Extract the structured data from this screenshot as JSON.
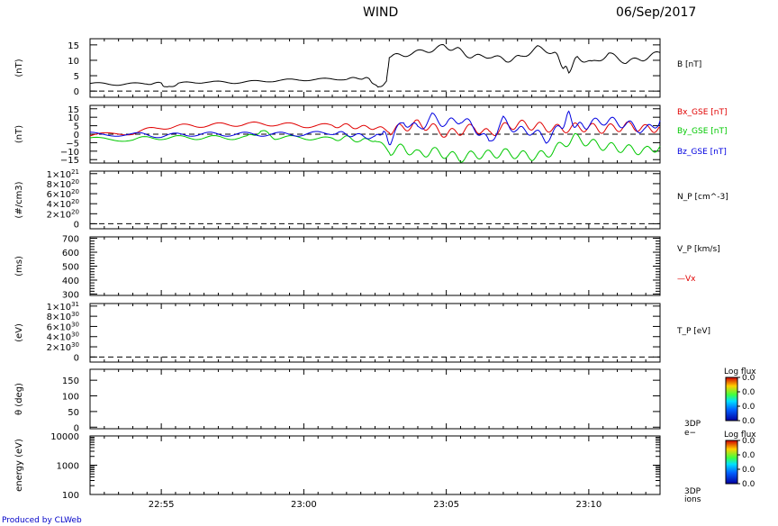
{
  "header": {
    "title": "WIND",
    "date": "06/Sep/2017"
  },
  "footer": {
    "credit": "Produced by CLWeb"
  },
  "x_axis": {
    "tick_labels": [
      "22:55",
      "23:00",
      "23:05",
      "23:10"
    ],
    "tick_minutes": [
      1375,
      1380,
      1385,
      1390
    ],
    "range_minutes": [
      1372.5,
      1392.5
    ]
  },
  "colorbars": [
    {
      "title": "Log flux",
      "ticks": [
        "0.0",
        "0.0",
        "0.0",
        "0.0"
      ]
    },
    {
      "title": "Log flux",
      "ticks": [
        "0.0",
        "0.0",
        "0.0",
        "0.0"
      ]
    }
  ],
  "chart_data": [
    {
      "type": "line",
      "ylabel": "(nT)",
      "ylim": [
        -2,
        17
      ],
      "yticks": [
        "0",
        "5",
        "10",
        "15"
      ],
      "series": [
        {
          "name": "B [nT]",
          "color": "#000000",
          "x": [
            1372.5,
            1373.5,
            1374.5,
            1375.0,
            1375.2,
            1375.6,
            1376.5,
            1377.5,
            1378.5,
            1379.5,
            1380.5,
            1381.5,
            1382.0,
            1382.3,
            1382.6,
            1382.9,
            1383.0,
            1383.6,
            1384.3,
            1384.9,
            1385.4,
            1385.9,
            1386.5,
            1387.1,
            1387.6,
            1388.2,
            1388.8,
            1389.1,
            1389.3,
            1389.6,
            1390.1,
            1390.7,
            1391.3,
            1391.9,
            1392.5
          ],
          "y": [
            2.5,
            2.2,
            2.5,
            2.5,
            1.0,
            2.5,
            3.0,
            2.8,
            3.2,
            3.6,
            3.8,
            4.0,
            4.2,
            4.0,
            1.0,
            3.0,
            11.0,
            12.0,
            13.0,
            14.5,
            13.5,
            11.0,
            11.5,
            10.0,
            11.0,
            14.0,
            12.5,
            8.0,
            6.5,
            11.0,
            9.0,
            12.0,
            9.5,
            10.5,
            12.5
          ]
        }
      ],
      "dashed_zero": true
    },
    {
      "type": "line",
      "ylabel": "(nT)",
      "ylim": [
        -17,
        17
      ],
      "yticks": [
        "15",
        "10",
        "5",
        "0",
        "−5",
        "−10",
        "−15"
      ],
      "series": [
        {
          "name": "Bx_GSE [nT]",
          "color": "#e00000",
          "x": [
            1372.5,
            1374.0,
            1375.0,
            1376.0,
            1377.0,
            1378.0,
            1379.0,
            1380.0,
            1381.0,
            1381.5,
            1382.0,
            1382.5,
            1383.0,
            1383.5,
            1384.0,
            1384.5,
            1385.0,
            1385.5,
            1386.0,
            1386.5,
            1387.0,
            1387.5,
            1388.0,
            1388.5,
            1389.0,
            1389.5,
            1390.0,
            1390.5,
            1391.0,
            1391.5,
            1392.0,
            1392.5
          ],
          "y": [
            -1,
            1,
            4,
            5,
            5.5,
            6,
            6,
            5,
            5,
            5,
            4,
            4,
            2,
            4,
            6,
            4,
            0,
            2,
            4,
            0,
            4,
            6,
            5,
            4,
            3,
            4,
            4,
            3,
            4,
            5,
            3,
            4
          ]
        },
        {
          "name": "By_GSE [nT]",
          "color": "#00c800",
          "x": [
            1372.5,
            1374.0,
            1375.0,
            1376.0,
            1377.0,
            1378.0,
            1378.5,
            1379.0,
            1380.0,
            1381.0,
            1381.5,
            1382.0,
            1382.5,
            1383.0,
            1383.5,
            1384.0,
            1384.5,
            1385.0,
            1385.5,
            1386.0,
            1386.5,
            1387.0,
            1387.5,
            1388.0,
            1388.5,
            1389.0,
            1389.5,
            1390.0,
            1390.5,
            1391.0,
            1391.5,
            1392.0,
            1392.5
          ],
          "y": [
            -3,
            -3,
            -2,
            -2,
            -2,
            -2,
            2,
            -2,
            -2,
            -3,
            -2,
            -4,
            -3,
            -10,
            -8,
            -12,
            -10,
            -12,
            -14,
            -12,
            -12,
            -11,
            -12,
            -13,
            -12,
            -7,
            -2,
            -5,
            -7,
            -8,
            -9,
            -10,
            -7
          ]
        },
        {
          "name": "Bz_GSE [nT]",
          "color": "#0000e0",
          "x": [
            1372.5,
            1374.0,
            1375.0,
            1376.0,
            1377.0,
            1378.0,
            1379.0,
            1380.0,
            1381.0,
            1381.5,
            1382.0,
            1382.5,
            1382.8,
            1383.0,
            1383.5,
            1384.0,
            1384.5,
            1385.0,
            1385.5,
            1386.0,
            1386.5,
            1387.0,
            1387.5,
            1388.0,
            1388.5,
            1389.0,
            1389.3,
            1389.6,
            1390.0,
            1390.5,
            1391.0,
            1391.5,
            1392.0,
            1392.5
          ],
          "y": [
            0,
            0,
            -1,
            0,
            0,
            0,
            0,
            0,
            1,
            0,
            -1,
            -2,
            2,
            -5,
            8,
            3,
            10,
            6,
            9,
            4,
            -5,
            8,
            2,
            2,
            -3,
            4,
            11,
            4,
            6,
            8,
            7,
            5,
            2,
            8
          ]
        }
      ],
      "dashed_zero": true
    },
    {
      "type": "line",
      "ylabel": "(#/cm3)",
      "ylim": [
        -0.1,
        1.05
      ],
      "yticks": [
        "0",
        "2×10",
        "4×10",
        "6×10",
        "8×10",
        "1×10"
      ],
      "ytick_exponents": [
        "",
        "20",
        "20",
        "20",
        "20",
        "21"
      ],
      "series": [
        {
          "name": "N_P [cm^-3]",
          "color": "#000000",
          "x": [],
          "y": []
        }
      ],
      "dashed_zero": true
    },
    {
      "type": "line",
      "ylabel": "(ms)",
      "ylim": [
        290,
        710
      ],
      "yticks": [
        "300",
        "400",
        "500",
        "600",
        "700"
      ],
      "series": [
        {
          "name": "V_P [km/s]",
          "color": "#000000",
          "x": [],
          "y": []
        },
        {
          "name": "—Vx",
          "color": "#e00000",
          "x": [],
          "y": []
        }
      ],
      "dashed_zero": false
    },
    {
      "type": "line",
      "ylabel": "(eV)",
      "ylim": [
        -0.1,
        1.05
      ],
      "yticks": [
        "0",
        "2×10",
        "4×10",
        "6×10",
        "8×10",
        "1×10"
      ],
      "ytick_exponents": [
        "",
        "30",
        "30",
        "30",
        "30",
        "31"
      ],
      "series": [
        {
          "name": "T_P [eV]",
          "color": "#000000",
          "x": [],
          "y": []
        }
      ],
      "dashed_zero": true
    },
    {
      "type": "heatmap",
      "ylabel": "θ (deg)",
      "ylim": [
        -5,
        185
      ],
      "yticks": [
        "0",
        "50",
        "100",
        "150"
      ],
      "right_label": [
        "3DP",
        "e−"
      ],
      "values": []
    },
    {
      "type": "heatmap",
      "ylabel": "energy (eV)",
      "scale": "log",
      "ylim": [
        100,
        10000
      ],
      "yticks": [
        "100",
        "1000",
        "10000"
      ],
      "right_label": [
        "3DP",
        "ions"
      ],
      "values": []
    }
  ]
}
